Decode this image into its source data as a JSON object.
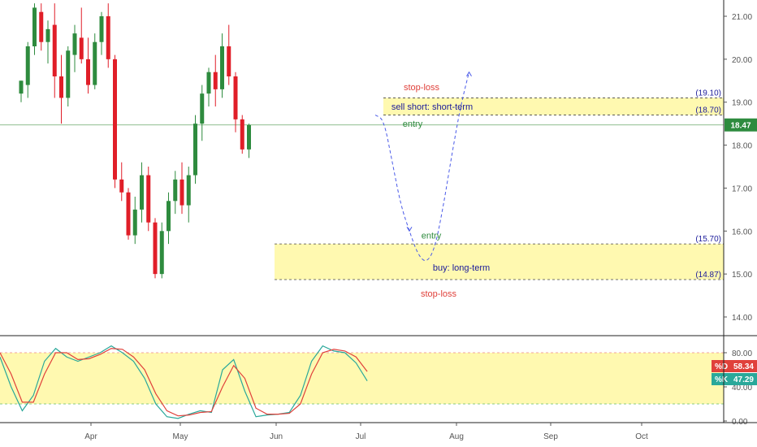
{
  "colors": {
    "up": "#2e8b3e",
    "down": "#e01e28",
    "zone": "#fff9b0",
    "k_line": "#2aa89a",
    "d_line": "#e0413b",
    "entry": "#2e8b3e",
    "stop": "#e0413b",
    "label": "#1a1a9a",
    "path": "#4a5ae8"
  },
  "chart_data": [
    {
      "type": "candlestick",
      "x_labels": [
        "Apr",
        "May",
        "Jun",
        "Jul",
        "Aug",
        "Sep",
        "Oct"
      ],
      "y_ticks": [
        "21.00",
        "20.00",
        "19.00",
        "18.00",
        "17.00",
        "16.00",
        "15.00",
        "14.00"
      ],
      "ylim": [
        13.5,
        21.3
      ],
      "last_price": "18.47",
      "candles": [
        {
          "o": 19.2,
          "h": 19.5,
          "l": 19.0,
          "c": 19.5
        },
        {
          "o": 19.4,
          "h": 20.4,
          "l": 19.1,
          "c": 20.3
        },
        {
          "o": 20.3,
          "h": 21.3,
          "l": 20.1,
          "c": 21.2
        },
        {
          "o": 21.1,
          "h": 21.3,
          "l": 20.2,
          "c": 20.4
        },
        {
          "o": 20.4,
          "h": 20.9,
          "l": 19.9,
          "c": 20.7
        },
        {
          "o": 20.8,
          "h": 21.3,
          "l": 19.1,
          "c": 19.6
        },
        {
          "o": 19.6,
          "h": 20.1,
          "l": 18.5,
          "c": 19.1
        },
        {
          "o": 19.1,
          "h": 20.3,
          "l": 18.9,
          "c": 20.2
        },
        {
          "o": 20.1,
          "h": 20.8,
          "l": 19.7,
          "c": 20.6
        },
        {
          "o": 20.5,
          "h": 21.2,
          "l": 19.9,
          "c": 20.0
        },
        {
          "o": 20.0,
          "h": 20.5,
          "l": 19.2,
          "c": 19.4
        },
        {
          "o": 19.4,
          "h": 20.6,
          "l": 19.3,
          "c": 20.4
        },
        {
          "o": 20.4,
          "h": 21.1,
          "l": 20.1,
          "c": 21.0
        },
        {
          "o": 21.0,
          "h": 21.3,
          "l": 19.8,
          "c": 20.0
        },
        {
          "o": 20.0,
          "h": 20.1,
          "l": 17.0,
          "c": 17.2
        },
        {
          "o": 17.2,
          "h": 17.6,
          "l": 16.7,
          "c": 16.9
        },
        {
          "o": 16.9,
          "h": 17.0,
          "l": 15.8,
          "c": 15.9
        },
        {
          "o": 15.9,
          "h": 16.8,
          "l": 15.7,
          "c": 16.5
        },
        {
          "o": 16.5,
          "h": 17.6,
          "l": 16.2,
          "c": 17.3
        },
        {
          "o": 17.3,
          "h": 17.5,
          "l": 16.0,
          "c": 16.2
        },
        {
          "o": 16.2,
          "h": 16.3,
          "l": 14.9,
          "c": 15.0
        },
        {
          "o": 15.0,
          "h": 16.2,
          "l": 14.9,
          "c": 16.0
        },
        {
          "o": 16.0,
          "h": 16.9,
          "l": 15.7,
          "c": 16.7
        },
        {
          "o": 16.7,
          "h": 17.4,
          "l": 16.4,
          "c": 17.2
        },
        {
          "o": 17.2,
          "h": 17.6,
          "l": 16.4,
          "c": 16.6
        },
        {
          "o": 16.6,
          "h": 17.5,
          "l": 16.2,
          "c": 17.3
        },
        {
          "o": 17.3,
          "h": 18.7,
          "l": 17.1,
          "c": 18.5
        },
        {
          "o": 18.5,
          "h": 19.4,
          "l": 18.1,
          "c": 19.2
        },
        {
          "o": 19.2,
          "h": 19.8,
          "l": 18.9,
          "c": 19.7
        },
        {
          "o": 19.7,
          "h": 20.1,
          "l": 18.9,
          "c": 19.3
        },
        {
          "o": 19.3,
          "h": 20.6,
          "l": 19.1,
          "c": 20.3
        },
        {
          "o": 20.3,
          "h": 20.8,
          "l": 19.4,
          "c": 19.6
        },
        {
          "o": 19.6,
          "h": 19.7,
          "l": 18.3,
          "c": 18.6
        },
        {
          "o": 18.6,
          "h": 18.7,
          "l": 17.8,
          "c": 17.9
        },
        {
          "o": 17.9,
          "h": 18.5,
          "l": 17.7,
          "c": 18.47
        }
      ],
      "horizontal_line": 18.47,
      "zones": [
        {
          "from": 18.7,
          "to": 19.1,
          "upper_label": "(19.10)",
          "lower_label": "(18.70)"
        },
        {
          "from": 14.87,
          "to": 15.7,
          "upper_label": "(15.70)",
          "lower_label": "(14.87)"
        }
      ],
      "annotations": [
        {
          "text": "stop-loss",
          "kind": "stop",
          "price": 19.35
        },
        {
          "text": "sell short: short-term",
          "kind": "label",
          "price": 18.9
        },
        {
          "text": "entry",
          "kind": "entry",
          "price": 18.5
        },
        {
          "text": "entry",
          "kind": "entry",
          "price": 15.9
        },
        {
          "text": "buy: long-term",
          "kind": "label",
          "price": 15.15
        },
        {
          "text": "stop-loss",
          "kind": "stop",
          "price": 14.55
        }
      ],
      "projected_path": [
        18.7,
        18.6,
        17.6,
        16.6,
        16.0,
        15.45,
        15.25,
        15.6,
        16.6,
        17.8,
        18.9,
        19.7
      ]
    },
    {
      "type": "line",
      "name": "Stochastic",
      "y_ticks": [
        "80.00",
        "40.00",
        "0.00"
      ],
      "ylim": [
        0,
        100
      ],
      "bands": [
        20,
        80
      ],
      "tags": [
        {
          "label": "%D",
          "value": "58.34"
        },
        {
          "label": "%K",
          "value": "47.29"
        }
      ],
      "series": [
        {
          "label": "%K",
          "values": [
            75,
            40,
            12,
            30,
            70,
            85,
            75,
            70,
            75,
            80,
            88,
            80,
            70,
            50,
            20,
            5,
            3,
            8,
            12,
            10,
            60,
            72,
            35,
            5,
            7,
            8,
            10,
            30,
            70,
            88,
            82,
            80,
            68,
            47
          ]
        },
        {
          "label": "%D",
          "values": [
            80,
            55,
            22,
            22,
            55,
            80,
            80,
            72,
            73,
            78,
            85,
            84,
            75,
            60,
            32,
            12,
            6,
            7,
            10,
            11,
            40,
            65,
            50,
            15,
            8,
            8,
            9,
            20,
            55,
            80,
            84,
            82,
            75,
            58
          ]
        }
      ]
    }
  ]
}
